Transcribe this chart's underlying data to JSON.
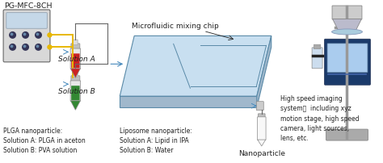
{
  "bg_color": "#ffffff",
  "title_text": "PG-MFC-8CH",
  "solution_a_label": "Solution A",
  "solution_b_label": "Solution B",
  "chip_label": "Microfluidic mixing chip",
  "nanoparticle_label": "Nanoparticle",
  "imaging_label": "High speed imaging\nsystem：  including xyz\nmotion stage, high speed\ncamera, light sources,\nlens, etc.",
  "plga_label": "PLGA nanoparticle:\nSolution A: PLGA in aceton\nSolution B: PVA solution",
  "liposome_label": "Liposome nanoparticle:\nSolution A: Lipid in IPA\nSolution B: Water",
  "device_fill": "#d8d8d8",
  "device_screen": "#c5d8e8",
  "device_edge": "#666666",
  "chip_top": "#c8dff0",
  "chip_side": "#a0b8cc",
  "chip_edge": "#5a8aa8",
  "tube_red": "#cc2222",
  "tube_green": "#338833",
  "tube_body": "#e8e8e8",
  "tube_cap": "#c0c0c0",
  "line_yellow": "#e8b800",
  "line_gray": "#666666",
  "line_blue": "#4488bb",
  "text_color": "#222222",
  "cam_body_dark": "#1a3a6a",
  "cam_body_mid": "#2255aa",
  "cam_screen": "#aaccee",
  "cam_gray": "#aaaaaa",
  "small_fontsize": 5.5,
  "label_fontsize": 6.5,
  "title_fontsize": 6.8
}
